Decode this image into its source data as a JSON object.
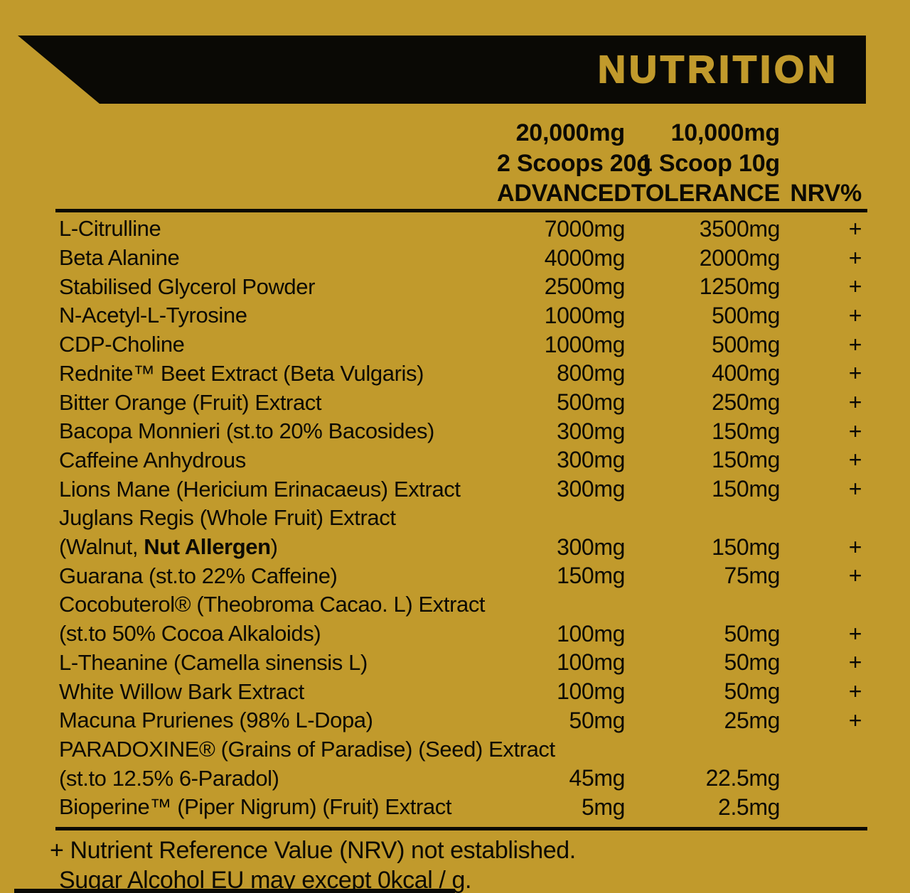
{
  "colors": {
    "gold": "#C19A2C",
    "black": "#0A0905"
  },
  "header": {
    "title": "NUTRITION"
  },
  "columns": {
    "advanced": {
      "amount": "20,000mg",
      "scoops": "2 Scoops 20g",
      "label": "ADVANCED"
    },
    "tolerance": {
      "amount": "10,000mg",
      "scoops": "1 Scoop 10g",
      "label": "TOLERANCE"
    },
    "nrv_label": "NRV%"
  },
  "rows": [
    {
      "name": "L-Citrulline",
      "advanced": "7000mg",
      "tolerance": "3500mg",
      "nrv": "+"
    },
    {
      "name": "Beta Alanine",
      "advanced": "4000mg",
      "tolerance": "2000mg",
      "nrv": "+"
    },
    {
      "name": "Stabilised Glycerol Powder",
      "advanced": "2500mg",
      "tolerance": "1250mg",
      "nrv": "+"
    },
    {
      "name": "N-Acetyl-L-Tyrosine",
      "advanced": "1000mg",
      "tolerance": "500mg",
      "nrv": "+"
    },
    {
      "name": "CDP-Choline",
      "advanced": "1000mg",
      "tolerance": "500mg",
      "nrv": "+"
    },
    {
      "name": "Rednite™ Beet Extract (Beta Vulgaris)",
      "advanced": "800mg",
      "tolerance": "400mg",
      "nrv": "+"
    },
    {
      "name": "Bitter Orange (Fruit) Extract",
      "advanced": "500mg",
      "tolerance": "250mg",
      "nrv": "+"
    },
    {
      "name": "Bacopa Monnieri (st.to 20% Bacosides)",
      "advanced": "300mg",
      "tolerance": "150mg",
      "nrv": "+"
    },
    {
      "name": "Caffeine Anhydrous",
      "advanced": "300mg",
      "tolerance": "150mg",
      "nrv": "+"
    },
    {
      "name": "Lions Mane (Hericium Erinacaeus) Extract",
      "advanced": "300mg",
      "tolerance": "150mg",
      "nrv": "+"
    },
    {
      "name": "Juglans Regis (Whole Fruit) Extract",
      "advanced": "",
      "tolerance": "",
      "nrv": ""
    },
    {
      "name_pre": "(Walnut, ",
      "name_bold": "Nut Allergen",
      "name_post": ")",
      "advanced": "300mg",
      "tolerance": "150mg",
      "nrv": "+"
    },
    {
      "name": "Guarana (st.to 22% Caffeine)",
      "advanced": "150mg",
      "tolerance": "75mg",
      "nrv": "+"
    },
    {
      "name": "Cocobuterol® (Theobroma Cacao. L) Extract",
      "advanced": "",
      "tolerance": "",
      "nrv": ""
    },
    {
      "name": "(st.to 50% Cocoa Alkaloids)",
      "advanced": "100mg",
      "tolerance": "50mg",
      "nrv": "+"
    },
    {
      "name": "L-Theanine (Camella sinensis L)",
      "advanced": "100mg",
      "tolerance": "50mg",
      "nrv": "+"
    },
    {
      "name": "White Willow Bark Extract",
      "advanced": "100mg",
      "tolerance": "50mg",
      "nrv": "+"
    },
    {
      "name": "Macuna Prurienes (98% L-Dopa)",
      "advanced": "50mg",
      "tolerance": "25mg",
      "nrv": "+"
    },
    {
      "name": "PARADOXINE® (Grains of Paradise) (Seed) Extract",
      "advanced": "",
      "tolerance": "",
      "nrv": ""
    },
    {
      "name": "(st.to 12.5% 6-Paradol)",
      "advanced": "45mg",
      "tolerance": "22.5mg",
      "nrv": ""
    },
    {
      "name": "Bioperine™ (Piper Nigrum) (Fruit) Extract",
      "advanced": "5mg",
      "tolerance": "2.5mg",
      "nrv": ""
    }
  ],
  "footer": {
    "line1": "+ Nutrient Reference Value (NRV) not established.",
    "line2": "Sugar Alcohol EU may except 0kcal / g."
  }
}
